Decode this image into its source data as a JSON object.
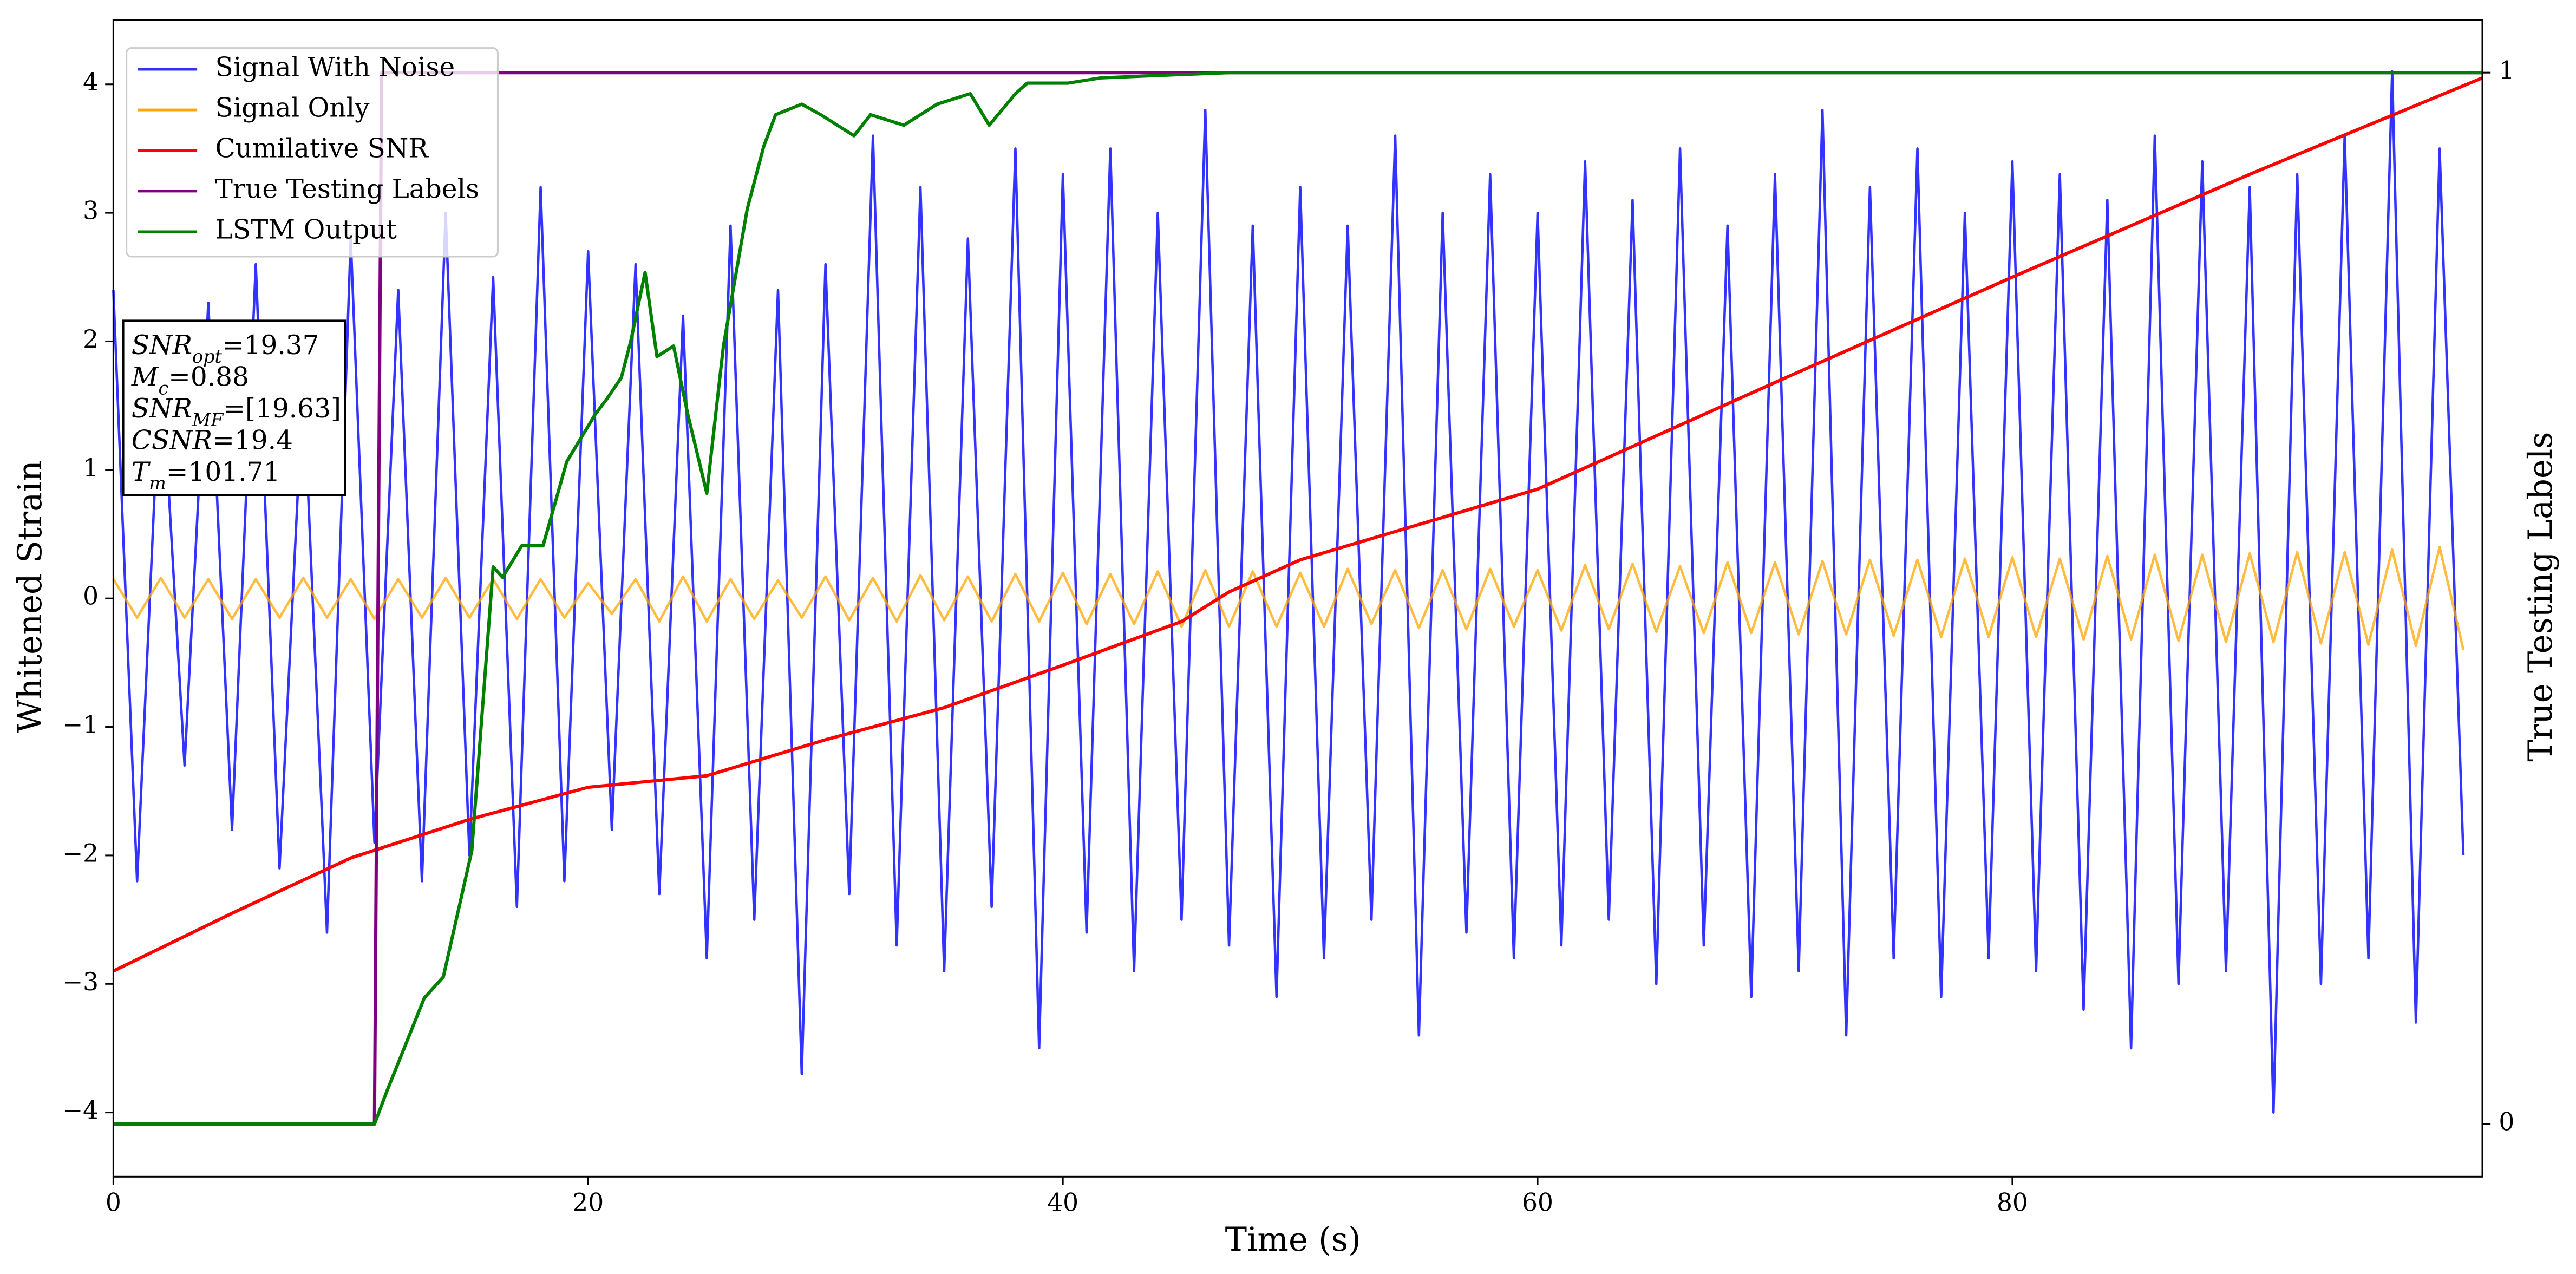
{
  "chart_data": {
    "type": "line",
    "xlabel": "Time (s)",
    "ylabel": "Whitened Strain",
    "y2label": "True Testing Labels",
    "xlim": [
      0,
      99.8
    ],
    "ylim": [
      -4.5,
      4.5
    ],
    "y2lim": [
      -0.05,
      1.05
    ],
    "xticks": [
      0,
      20,
      40,
      60,
      80
    ],
    "yticks": [
      {
        "value": -4,
        "label": "−4"
      },
      {
        "value": -3,
        "label": "−3"
      },
      {
        "value": -2,
        "label": "−2"
      },
      {
        "value": -1,
        "label": "−1"
      },
      0,
      1,
      2,
      3,
      4
    ],
    "y2ticks": [
      0,
      1
    ],
    "legend": "upper left",
    "x": [
      0,
      1,
      2,
      3,
      4,
      5,
      6,
      7,
      8,
      9,
      10,
      11,
      12,
      13,
      14,
      15,
      16,
      17,
      18,
      19,
      20,
      21,
      22,
      23,
      24,
      25,
      26,
      27,
      28,
      29,
      30,
      31,
      32,
      33,
      34,
      35,
      36,
      37,
      38,
      39,
      40,
      41,
      42,
      43,
      44,
      45,
      46,
      47,
      48,
      49,
      50,
      51,
      52,
      53,
      54,
      55,
      56,
      57,
      58,
      59,
      60,
      61,
      62,
      63,
      64,
      65,
      66,
      67,
      68,
      69,
      70,
      71,
      72,
      73,
      74,
      75,
      76,
      77,
      78,
      79,
      80,
      81,
      82,
      83,
      84,
      85,
      86,
      87,
      88,
      89,
      90,
      91,
      92,
      93,
      94,
      95,
      96,
      97,
      98,
      99
    ],
    "series": [
      {
        "name": "Signal With Noise",
        "color": "#3333ff",
        "values": [
          2.4,
          -2.2,
          1.9,
          -1.3,
          2.3,
          -1.8,
          2.6,
          -2.1,
          1.7,
          -2.6,
          2.8,
          -1.9,
          2.4,
          -2.2,
          3.0,
          -2.0,
          2.5,
          -2.4,
          3.2,
          -2.2,
          2.7,
          -1.8,
          2.6,
          -2.3,
          2.2,
          -2.8,
          2.9,
          -2.5,
          2.4,
          -3.7,
          2.6,
          -2.3,
          3.6,
          -2.7,
          3.2,
          -2.9,
          2.8,
          -2.4,
          3.5,
          -3.5,
          3.3,
          -2.6,
          3.5,
          -2.9,
          3.0,
          -2.5,
          3.8,
          -2.7,
          2.9,
          -3.1,
          3.2,
          -2.8,
          2.9,
          -2.5,
          3.6,
          -3.4,
          3.0,
          -2.6,
          3.3,
          -2.8,
          3.0,
          -2.7,
          3.4,
          -2.5,
          3.1,
          -3.0,
          3.5,
          -2.7,
          2.9,
          -3.1,
          3.3,
          -2.9,
          3.8,
          -3.4,
          3.2,
          -2.8,
          3.5,
          -3.1,
          3.0,
          -2.8,
          3.4,
          -2.9,
          3.3,
          -3.2,
          3.1,
          -3.5,
          3.6,
          -3.0,
          3.4,
          -2.9,
          3.2,
          -4.0,
          3.3,
          -3.0,
          3.6,
          -2.8,
          4.1,
          -3.3,
          3.5,
          -2.0
        ]
      },
      {
        "name": "Signal Only",
        "color": "#ffa500",
        "values": [
          0.15,
          -0.15,
          0.16,
          -0.15,
          0.15,
          -0.16,
          0.15,
          -0.15,
          0.16,
          -0.15,
          0.15,
          -0.16,
          0.15,
          -0.15,
          0.16,
          -0.15,
          0.15,
          -0.16,
          0.15,
          -0.15,
          0.12,
          -0.12,
          0.15,
          -0.18,
          0.17,
          -0.18,
          0.15,
          -0.16,
          0.14,
          -0.15,
          0.17,
          -0.17,
          0.16,
          -0.18,
          0.18,
          -0.17,
          0.17,
          -0.18,
          0.19,
          -0.18,
          0.2,
          -0.2,
          0.19,
          -0.2,
          0.21,
          -0.22,
          0.22,
          -0.22,
          0.21,
          -0.22,
          0.2,
          -0.22,
          0.23,
          -0.2,
          0.22,
          -0.23,
          0.22,
          -0.24,
          0.23,
          -0.22,
          0.22,
          -0.25,
          0.26,
          -0.24,
          0.27,
          -0.26,
          0.25,
          -0.27,
          0.28,
          -0.27,
          0.28,
          -0.28,
          0.29,
          -0.28,
          0.3,
          -0.29,
          0.3,
          -0.3,
          0.31,
          -0.3,
          0.32,
          -0.3,
          0.31,
          -0.32,
          0.33,
          -0.32,
          0.34,
          -0.33,
          0.34,
          -0.34,
          0.35,
          -0.34,
          0.36,
          -0.35,
          0.36,
          -0.36,
          0.38,
          -0.37,
          0.4,
          -0.4
        ]
      },
      {
        "name": "Cumilative SNR",
        "color": "#ff0000",
        "x": [
          0,
          5,
          10,
          15,
          20,
          25,
          30,
          35,
          40,
          45,
          47,
          50,
          60,
          70,
          80,
          90,
          99.8
        ],
        "values": [
          -2.9,
          -2.45,
          -2.02,
          -1.72,
          -1.47,
          -1.38,
          -1.1,
          -0.85,
          -0.52,
          -0.18,
          0.05,
          0.3,
          0.85,
          1.68,
          2.5,
          3.3,
          4.05
        ]
      },
      {
        "name": "True Testing Labels",
        "color": "#800080",
        "axis": "y2",
        "x": [
          0,
          11,
          11.3,
          99.8
        ],
        "values": [
          0,
          0,
          1,
          1
        ]
      },
      {
        "name": "LSTM Output",
        "color": "#008000",
        "axis": "y2",
        "x": [
          0,
          11,
          11.5,
          13.1,
          13.9,
          15.1,
          16,
          16.4,
          17.2,
          18.1,
          19.1,
          20.3,
          20.8,
          21.4,
          21.8,
          22.4,
          22.9,
          23.6,
          24.2,
          25,
          25.7,
          26.7,
          27.4,
          27.9,
          29,
          29.8,
          31.2,
          31.9,
          33.3,
          34.7,
          36.1,
          36.9,
          38,
          38.5,
          40.2,
          41.6,
          43.7,
          47,
          99.8
        ],
        "values": [
          0,
          0,
          0.03,
          0.12,
          0.14,
          0.26,
          0.53,
          0.52,
          0.55,
          0.55,
          0.63,
          0.675,
          0.69,
          0.71,
          0.745,
          0.81,
          0.73,
          0.74,
          0.675,
          0.6,
          0.74,
          0.87,
          0.93,
          0.96,
          0.97,
          0.96,
          0.94,
          0.96,
          0.95,
          0.97,
          0.98,
          0.95,
          0.98,
          0.99,
          0.99,
          0.995,
          0.997,
          1,
          1
        ]
      }
    ],
    "annotation": [
      {
        "text": "SNR",
        "sub": "opt",
        "rest": "=19.37"
      },
      {
        "text": "M",
        "sub": "c",
        "rest": "=0.88"
      },
      {
        "text": "SNR",
        "sub": "MF",
        "rest": "=[19.63]"
      },
      {
        "text": "CSNR",
        "rest": "=19.4"
      },
      {
        "text": "T",
        "sub": "m",
        "rest": "=101.71"
      }
    ]
  }
}
